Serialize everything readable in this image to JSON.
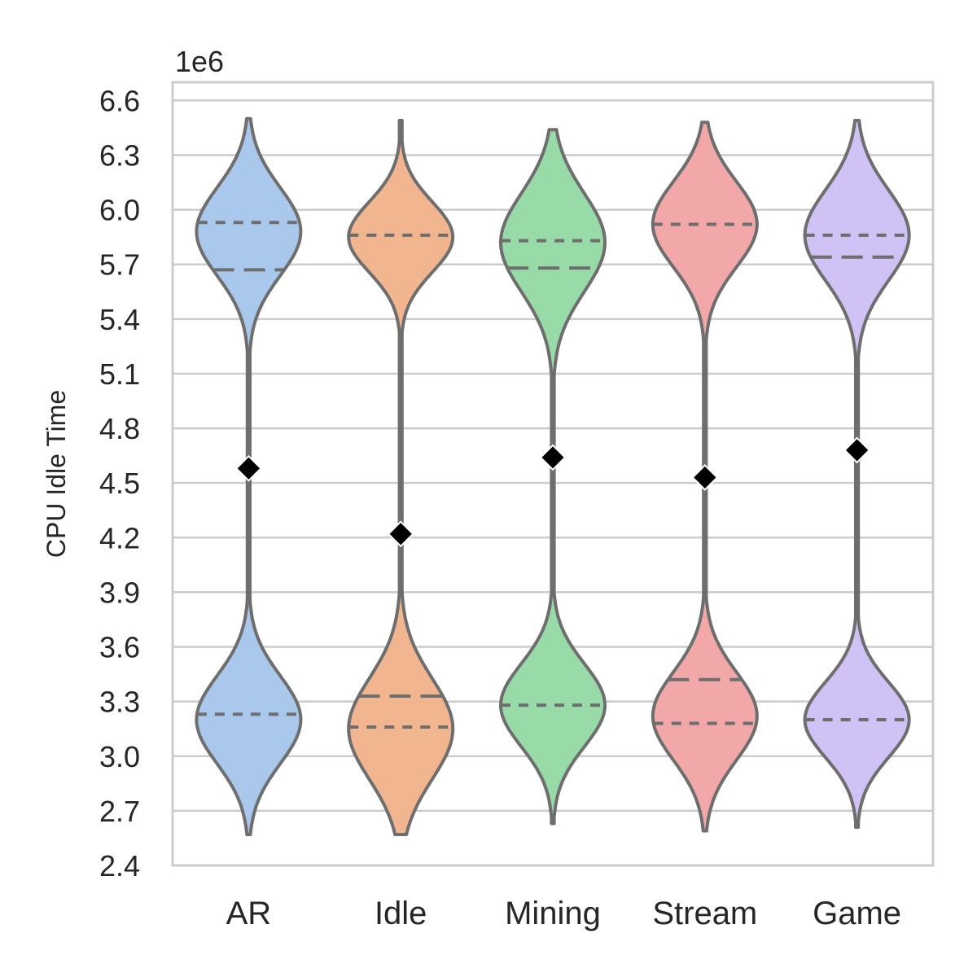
{
  "chart_data": {
    "type": "violin",
    "ylabel": "CPU Idle Time",
    "y_offset_label": "1e6",
    "ylim": [
      2.4,
      6.7
    ],
    "yticks": [
      "2.4",
      "2.7",
      "3.0",
      "3.3",
      "3.6",
      "3.9",
      "4.2",
      "4.5",
      "4.8",
      "5.1",
      "5.4",
      "5.7",
      "6.0",
      "6.3",
      "6.6"
    ],
    "grid": true,
    "categories": [
      "AR",
      "Idle",
      "Mining",
      "Stream",
      "Game"
    ],
    "colors": [
      "#a9c8ec",
      "#f1b68f",
      "#98dba9",
      "#f2a8a8",
      "#d0c2f5"
    ],
    "edge_color": "#6e6e6e",
    "marker_color": "#000000",
    "series": [
      {
        "name": "AR",
        "mean": 4.58,
        "min": 2.57,
        "max": 6.5,
        "lower_mode": {
          "center": 3.2,
          "width": 0.35
        },
        "upper_mode": {
          "center": 5.88,
          "width": 0.35
        },
        "quartile_lines": [
          {
            "value": 3.23,
            "style": "dotted"
          },
          {
            "value": 5.67,
            "style": "dashed"
          },
          {
            "value": 5.93,
            "style": "dotted"
          }
        ]
      },
      {
        "name": "Idle",
        "mean": 4.22,
        "min": 2.57,
        "max": 6.49,
        "lower_mode": {
          "center": 3.15,
          "width": 0.4
        },
        "upper_mode": {
          "center": 5.85,
          "width": 0.28
        },
        "quartile_lines": [
          {
            "value": 3.16,
            "style": "dotted"
          },
          {
            "value": 3.33,
            "style": "dashed"
          },
          {
            "value": 5.86,
            "style": "dotted"
          }
        ]
      },
      {
        "name": "Mining",
        "mean": 4.64,
        "min": 2.63,
        "max": 6.44,
        "lower_mode": {
          "center": 3.28,
          "width": 0.33
        },
        "upper_mode": {
          "center": 5.82,
          "width": 0.39
        },
        "quartile_lines": [
          {
            "value": 3.28,
            "style": "dotted"
          },
          {
            "value": 5.68,
            "style": "dashed"
          },
          {
            "value": 5.83,
            "style": "dotted"
          }
        ]
      },
      {
        "name": "Stream",
        "mean": 4.53,
        "min": 2.59,
        "max": 6.48,
        "lower_mode": {
          "center": 3.22,
          "width": 0.35
        },
        "upper_mode": {
          "center": 5.92,
          "width": 0.34
        },
        "quartile_lines": [
          {
            "value": 3.18,
            "style": "dotted"
          },
          {
            "value": 3.42,
            "style": "dashed"
          },
          {
            "value": 5.92,
            "style": "dotted"
          }
        ]
      },
      {
        "name": "Game",
        "mean": 4.68,
        "min": 2.61,
        "max": 6.49,
        "lower_mode": {
          "center": 3.2,
          "width": 0.3
        },
        "upper_mode": {
          "center": 5.86,
          "width": 0.36
        },
        "quartile_lines": [
          {
            "value": 3.2,
            "style": "dotted"
          },
          {
            "value": 5.74,
            "style": "dashed"
          },
          {
            "value": 5.86,
            "style": "dotted"
          }
        ]
      }
    ]
  }
}
